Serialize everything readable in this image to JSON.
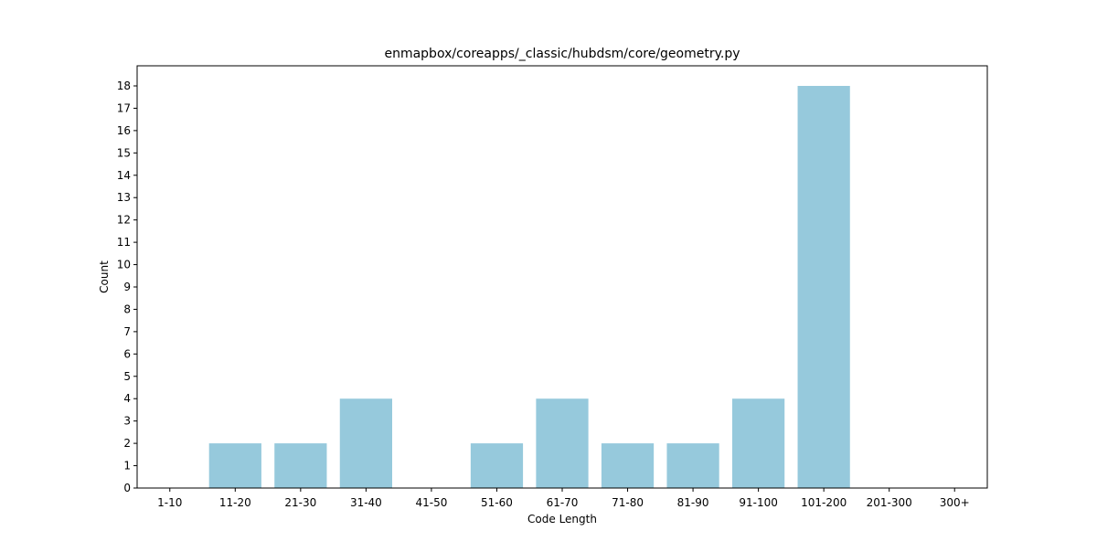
{
  "chart_data": {
    "type": "bar",
    "title": "enmapbox/coreapps/_classic/hubdsm/core/geometry.py",
    "xlabel": "Code Length",
    "ylabel": "Count",
    "categories": [
      "1-10",
      "11-20",
      "21-30",
      "31-40",
      "41-50",
      "51-60",
      "61-70",
      "71-80",
      "81-90",
      "91-100",
      "101-200",
      "201-300",
      "300+"
    ],
    "values": [
      0,
      2,
      2,
      4,
      0,
      2,
      4,
      2,
      2,
      4,
      18,
      0,
      0
    ],
    "ylim": [
      0,
      18.9
    ],
    "yticks": [
      0,
      1,
      2,
      3,
      4,
      5,
      6,
      7,
      8,
      9,
      10,
      11,
      12,
      13,
      14,
      15,
      16,
      17,
      18
    ],
    "grid": false,
    "legend": "none",
    "bar_color": "#96c9dc"
  }
}
